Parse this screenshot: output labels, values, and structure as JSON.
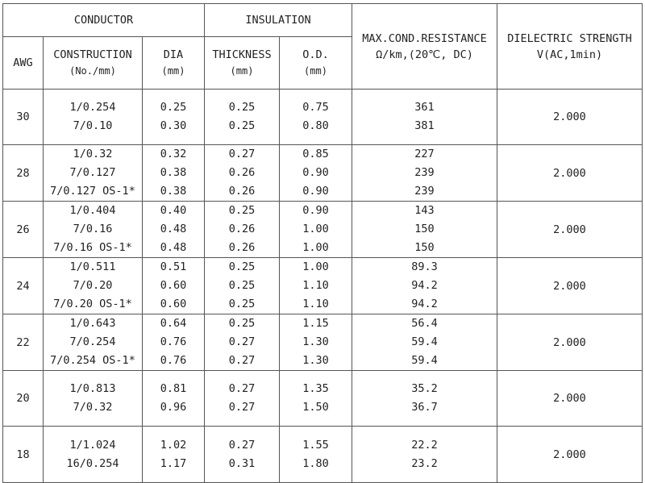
{
  "header": {
    "conductor": "CONDUCTOR",
    "insulation": "INSULATION",
    "resistance_line1": "MAX.COND.RESISTANCE",
    "resistance_line2": "Ω/km,(20℃, DC)",
    "dielectric_line1": "DIELECTRIC STRENGTH",
    "dielectric_line2": "V(AC,1min)",
    "awg": "AWG",
    "construction": "CONSTRUCTION",
    "construction_unit": "(No./mm)",
    "dia": "DIA",
    "dia_unit": "(mm)",
    "thickness": "THICKNESS",
    "thickness_unit": "(mm)",
    "od": "O.D.",
    "od_unit": "(mm)"
  },
  "rows": [
    {
      "awg": "30",
      "construction": [
        "1/0.254",
        "7/0.10"
      ],
      "dia": [
        "0.25",
        "0.30"
      ],
      "thickness": [
        "0.25",
        "0.25"
      ],
      "od": [
        "0.75",
        "0.80"
      ],
      "resistance": [
        "361",
        "381"
      ],
      "dielectric": "2.000"
    },
    {
      "awg": "28",
      "construction": [
        "1/0.32",
        "7/0.127",
        "7/0.127 OS-1*"
      ],
      "dia": [
        "0.32",
        "0.38",
        "0.38"
      ],
      "thickness": [
        "0.27",
        "0.26",
        "0.26"
      ],
      "od": [
        "0.85",
        "0.90",
        "0.90"
      ],
      "resistance": [
        "227",
        "239",
        "239"
      ],
      "dielectric": "2.000"
    },
    {
      "awg": "26",
      "construction": [
        "1/0.404",
        "7/0.16",
        "7/0.16 OS-1*"
      ],
      "dia": [
        "0.40",
        "0.48",
        "0.48"
      ],
      "thickness": [
        "0.25",
        "0.26",
        "0.26"
      ],
      "od": [
        "0.90",
        "1.00",
        "1.00"
      ],
      "resistance": [
        "143",
        "150",
        "150"
      ],
      "dielectric": "2.000"
    },
    {
      "awg": "24",
      "construction": [
        "1/0.511",
        "7/0.20",
        "7/0.20 OS-1*"
      ],
      "dia": [
        "0.51",
        "0.60",
        "0.60"
      ],
      "thickness": [
        "0.25",
        "0.25",
        "0.25"
      ],
      "od": [
        "1.00",
        "1.10",
        "1.10"
      ],
      "resistance": [
        "89.3",
        "94.2",
        "94.2"
      ],
      "dielectric": "2.000"
    },
    {
      "awg": "22",
      "construction": [
        "1/0.643",
        "7/0.254",
        "7/0.254 OS-1*"
      ],
      "dia": [
        "0.64",
        "0.76",
        "0.76"
      ],
      "thickness": [
        "0.25",
        "0.27",
        "0.27"
      ],
      "od": [
        "1.15",
        "1.30",
        "1.30"
      ],
      "resistance": [
        "56.4",
        "59.4",
        "59.4"
      ],
      "dielectric": "2.000"
    },
    {
      "awg": "20",
      "construction": [
        "1/0.813",
        "7/0.32"
      ],
      "dia": [
        "0.81",
        "0.96"
      ],
      "thickness": [
        "0.27",
        "0.27"
      ],
      "od": [
        "1.35",
        "1.50"
      ],
      "resistance": [
        "35.2",
        "36.7"
      ],
      "dielectric": "2.000"
    },
    {
      "awg": "18",
      "construction": [
        "1/1.024",
        "16/0.254"
      ],
      "dia": [
        "1.02",
        "1.17"
      ],
      "thickness": [
        "0.27",
        "0.31"
      ],
      "od": [
        "1.55",
        "1.80"
      ],
      "resistance": [
        "22.2",
        "23.2"
      ],
      "dielectric": "2.000"
    }
  ]
}
